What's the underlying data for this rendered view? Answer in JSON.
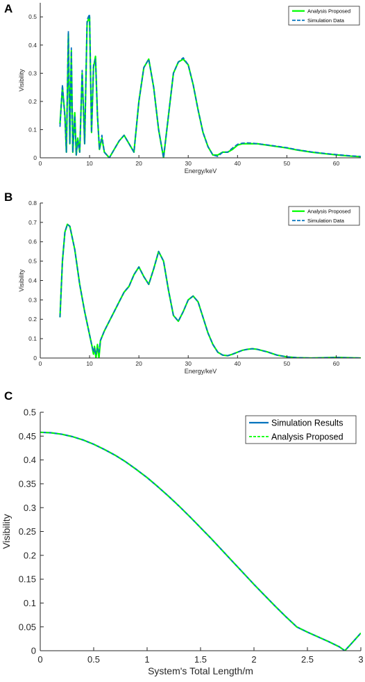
{
  "colors": {
    "green": "#00ff00",
    "blue": "#0072bd",
    "axis": "#262626"
  },
  "chart_data": [
    {
      "panel": "A",
      "type": "line",
      "title": "",
      "xlabel": "Energy/keV",
      "ylabel": "Visibility",
      "xlim": [
        0,
        65
      ],
      "ylim": [
        0,
        0.55
      ],
      "xticks": [
        0,
        10,
        20,
        30,
        40,
        50,
        60
      ],
      "xtick_labels": [
        "0",
        "10",
        "20",
        "30",
        "40",
        "50",
        "60"
      ],
      "yticks": [
        0,
        0.1,
        0.2,
        0.3,
        0.4,
        0.5
      ],
      "ytick_labels": [
        "0",
        "0.1",
        "0.2",
        "0.3",
        "0.4",
        "0.5"
      ],
      "legend": {
        "position": "top-right",
        "entries": [
          "Analysis Proposed",
          "Simulation Data"
        ]
      },
      "grid": false,
      "series": [
        {
          "name": "Analysis Proposed",
          "style": "solid",
          "color": "#00ff00",
          "x": [
            4.0,
            4.5,
            5.0,
            5.3,
            5.7,
            6.0,
            6.3,
            6.6,
            7.0,
            7.3,
            7.6,
            8.0,
            8.5,
            9.0,
            9.5,
            10.0,
            10.4,
            10.8,
            11.2,
            11.6,
            12.0,
            12.5,
            13.0,
            14.0,
            15.0,
            16.0,
            17.0,
            18.0,
            19.0,
            20.0,
            21.0,
            22.0,
            23.0,
            24.0,
            25.0,
            26.0,
            27.0,
            28.0,
            29.0,
            30.0,
            31.0,
            32.0,
            33.0,
            34.0,
            35.0,
            36.0,
            37.0,
            38.0,
            39.0,
            40.0,
            41.0,
            42.0,
            43.0,
            44.0,
            46.0,
            48.0,
            50.0,
            52.0,
            55.0,
            58.0,
            61.0,
            63.0,
            65.0
          ],
          "y": [
            0.12,
            0.25,
            0.15,
            0.02,
            0.44,
            0.05,
            0.38,
            0.02,
            0.16,
            0.01,
            0.07,
            0.02,
            0.3,
            0.05,
            0.48,
            0.5,
            0.09,
            0.32,
            0.36,
            0.15,
            0.03,
            0.07,
            0.02,
            0.0,
            0.03,
            0.06,
            0.08,
            0.05,
            0.02,
            0.2,
            0.32,
            0.35,
            0.25,
            0.1,
            0.0,
            0.15,
            0.3,
            0.34,
            0.35,
            0.33,
            0.26,
            0.17,
            0.09,
            0.04,
            0.01,
            0.01,
            0.02,
            0.02,
            0.03,
            0.045,
            0.05,
            0.05,
            0.05,
            0.05,
            0.045,
            0.04,
            0.035,
            0.028,
            0.02,
            0.014,
            0.009,
            0.006,
            0.004
          ]
        },
        {
          "name": "Simulation Data",
          "style": "dashed",
          "color": "#0072bd",
          "x": [
            4.0,
            4.5,
            5.0,
            5.3,
            5.7,
            6.0,
            6.3,
            6.6,
            7.0,
            7.3,
            7.6,
            8.0,
            8.5,
            9.0,
            9.5,
            10.0,
            10.4,
            10.8,
            11.2,
            11.6,
            12.0,
            12.5,
            13.0,
            14.0,
            15.0,
            16.0,
            17.0,
            18.0,
            19.0,
            20.0,
            21.0,
            22.0,
            23.0,
            24.0,
            25.0,
            26.0,
            27.0,
            28.0,
            29.0,
            30.0,
            31.0,
            32.0,
            33.0,
            34.0,
            35.0,
            36.0,
            37.0,
            38.0,
            39.0,
            40.0,
            41.0,
            42.0,
            43.0,
            44.0,
            46.0,
            48.0,
            50.0,
            52.0,
            55.0,
            58.0,
            61.0,
            63.0,
            65.0
          ],
          "y": [
            0.11,
            0.26,
            0.14,
            0.02,
            0.45,
            0.05,
            0.39,
            0.02,
            0.15,
            0.01,
            0.06,
            0.02,
            0.31,
            0.05,
            0.49,
            0.51,
            0.09,
            0.33,
            0.35,
            0.15,
            0.03,
            0.08,
            0.02,
            0.0,
            0.03,
            0.06,
            0.08,
            0.05,
            0.02,
            0.2,
            0.32,
            0.35,
            0.25,
            0.1,
            0.0,
            0.15,
            0.3,
            0.34,
            0.355,
            0.33,
            0.26,
            0.17,
            0.09,
            0.04,
            0.01,
            0.005,
            0.02,
            0.02,
            0.035,
            0.048,
            0.052,
            0.053,
            0.052,
            0.05,
            0.046,
            0.041,
            0.036,
            0.029,
            0.021,
            0.015,
            0.01,
            0.007,
            0.005
          ]
        }
      ]
    },
    {
      "panel": "B",
      "type": "line",
      "title": "",
      "xlabel": "Energy/keV",
      "ylabel": "Visibility",
      "xlim": [
        0,
        65
      ],
      "ylim": [
        0,
        0.8
      ],
      "xticks": [
        0,
        10,
        20,
        30,
        40,
        50,
        60
      ],
      "xtick_labels": [
        "0",
        "10",
        "20",
        "30",
        "40",
        "50",
        "60"
      ],
      "yticks": [
        0,
        0.1,
        0.2,
        0.3,
        0.4,
        0.5,
        0.6,
        0.7,
        0.8
      ],
      "ytick_labels": [
        "0",
        "0.1",
        "0.2",
        "0.3",
        "0.4",
        "0.5",
        "0.6",
        "0.7",
        "0.8"
      ],
      "legend": {
        "position": "top-right",
        "entries": [
          "Analysis Proposed",
          "Simulation Data"
        ]
      },
      "grid": false,
      "series": [
        {
          "name": "Analysis Proposed",
          "style": "solid",
          "color": "#00ff00",
          "x": [
            4.0,
            4.5,
            5.0,
            5.5,
            6.0,
            7.0,
            8.0,
            9.0,
            10.0,
            10.5,
            10.8,
            11.0,
            11.3,
            11.6,
            11.9,
            12.2,
            13.0,
            14.0,
            15.0,
            16.0,
            17.0,
            18.0,
            19.0,
            20.0,
            21.0,
            22.0,
            23.0,
            24.0,
            25.0,
            26.0,
            27.0,
            28.0,
            29.0,
            30.0,
            31.0,
            32.0,
            33.0,
            34.0,
            35.0,
            36.0,
            37.0,
            38.0,
            39.0,
            40.0,
            41.0,
            42.0,
            43.0,
            44.0,
            46.0,
            48.0,
            50.0,
            52.0,
            55.0,
            60.0,
            65.0
          ],
          "y": [
            0.21,
            0.5,
            0.65,
            0.69,
            0.68,
            0.56,
            0.38,
            0.24,
            0.12,
            0.06,
            0.02,
            0.06,
            0.0,
            0.07,
            0.0,
            0.09,
            0.14,
            0.19,
            0.24,
            0.29,
            0.34,
            0.37,
            0.43,
            0.47,
            0.42,
            0.38,
            0.46,
            0.55,
            0.5,
            0.35,
            0.22,
            0.19,
            0.24,
            0.3,
            0.32,
            0.29,
            0.21,
            0.13,
            0.07,
            0.03,
            0.015,
            0.012,
            0.02,
            0.03,
            0.04,
            0.045,
            0.048,
            0.045,
            0.032,
            0.015,
            0.006,
            0.002,
            0.0,
            0.003,
            0.0
          ]
        },
        {
          "name": "Simulation Data",
          "style": "dashed",
          "color": "#0072bd",
          "x": [
            4.0,
            4.5,
            5.0,
            5.5,
            6.0,
            7.0,
            8.0,
            9.0,
            10.0,
            10.5,
            10.8,
            11.0,
            11.3,
            11.6,
            11.9,
            12.2,
            13.0,
            14.0,
            15.0,
            16.0,
            17.0,
            18.0,
            19.0,
            20.0,
            21.0,
            22.0,
            23.0,
            24.0,
            25.0,
            26.0,
            27.0,
            28.0,
            29.0,
            30.0,
            31.0,
            32.0,
            33.0,
            34.0,
            35.0,
            36.0,
            37.0,
            38.0,
            39.0,
            40.0,
            41.0,
            42.0,
            43.0,
            44.0,
            46.0,
            48.0,
            50.0,
            52.0,
            55.0,
            60.0,
            65.0
          ],
          "y": [
            0.21,
            0.5,
            0.65,
            0.69,
            0.68,
            0.56,
            0.38,
            0.24,
            0.12,
            0.06,
            0.03,
            0.05,
            0.02,
            0.05,
            0.03,
            0.09,
            0.14,
            0.19,
            0.24,
            0.29,
            0.34,
            0.37,
            0.43,
            0.47,
            0.42,
            0.38,
            0.46,
            0.55,
            0.5,
            0.35,
            0.22,
            0.19,
            0.24,
            0.3,
            0.32,
            0.29,
            0.21,
            0.13,
            0.07,
            0.03,
            0.015,
            0.012,
            0.02,
            0.03,
            0.04,
            0.045,
            0.048,
            0.045,
            0.032,
            0.015,
            0.006,
            0.002,
            0.0,
            0.003,
            0.0
          ]
        }
      ]
    },
    {
      "panel": "C",
      "type": "line",
      "title": "",
      "xlabel": "System's Total Length/m",
      "ylabel": "Visibility",
      "xlim": [
        0,
        3
      ],
      "ylim": [
        0,
        0.5
      ],
      "xticks": [
        0,
        0.5,
        1,
        1.5,
        2,
        2.5,
        3
      ],
      "xtick_labels": [
        "0",
        "0.5",
        "1",
        "1.5",
        "2",
        "2.5",
        "3"
      ],
      "yticks": [
        0,
        0.05,
        0.1,
        0.15,
        0.2,
        0.25,
        0.3,
        0.35,
        0.4,
        0.45,
        0.5
      ],
      "ytick_labels": [
        "0",
        "0.05",
        "0.1",
        "0.15",
        "0.2",
        "0.25",
        "0.3",
        "0.35",
        "0.4",
        "0.45",
        "0.5"
      ],
      "legend": {
        "position": "top-right",
        "entries": [
          "Simulation Results",
          "Analysis Proposed"
        ]
      },
      "grid": false,
      "series": [
        {
          "name": "Simulation Results",
          "style": "solid",
          "color": "#0072bd",
          "x": [
            0,
            0.1,
            0.2,
            0.3,
            0.4,
            0.5,
            0.6,
            0.7,
            0.8,
            0.9,
            1.0,
            1.1,
            1.2,
            1.3,
            1.4,
            1.5,
            1.6,
            1.7,
            1.8,
            1.9,
            2.0,
            2.1,
            2.2,
            2.3,
            2.4,
            2.5,
            2.6,
            2.7,
            2.8,
            2.85,
            2.9,
            3.0
          ],
          "y": [
            0.458,
            0.457,
            0.454,
            0.449,
            0.442,
            0.433,
            0.422,
            0.41,
            0.396,
            0.38,
            0.363,
            0.344,
            0.324,
            0.303,
            0.281,
            0.258,
            0.235,
            0.211,
            0.187,
            0.163,
            0.139,
            0.116,
            0.093,
            0.071,
            0.05,
            0.039,
            0.029,
            0.019,
            0.008,
            0.0,
            0.012,
            0.037
          ]
        },
        {
          "name": "Analysis Proposed",
          "style": "dashed",
          "color": "#00ff00",
          "x": [
            0,
            0.1,
            0.2,
            0.3,
            0.4,
            0.5,
            0.6,
            0.7,
            0.8,
            0.9,
            1.0,
            1.1,
            1.2,
            1.3,
            1.4,
            1.5,
            1.6,
            1.7,
            1.8,
            1.9,
            2.0,
            2.1,
            2.2,
            2.3,
            2.4,
            2.5,
            2.6,
            2.7,
            2.8,
            2.85,
            2.9,
            3.0
          ],
          "y": [
            0.458,
            0.457,
            0.454,
            0.449,
            0.442,
            0.433,
            0.422,
            0.41,
            0.396,
            0.38,
            0.363,
            0.344,
            0.324,
            0.303,
            0.281,
            0.258,
            0.235,
            0.211,
            0.187,
            0.163,
            0.139,
            0.116,
            0.093,
            0.071,
            0.05,
            0.039,
            0.029,
            0.019,
            0.008,
            0.0,
            0.012,
            0.037
          ]
        }
      ]
    }
  ]
}
